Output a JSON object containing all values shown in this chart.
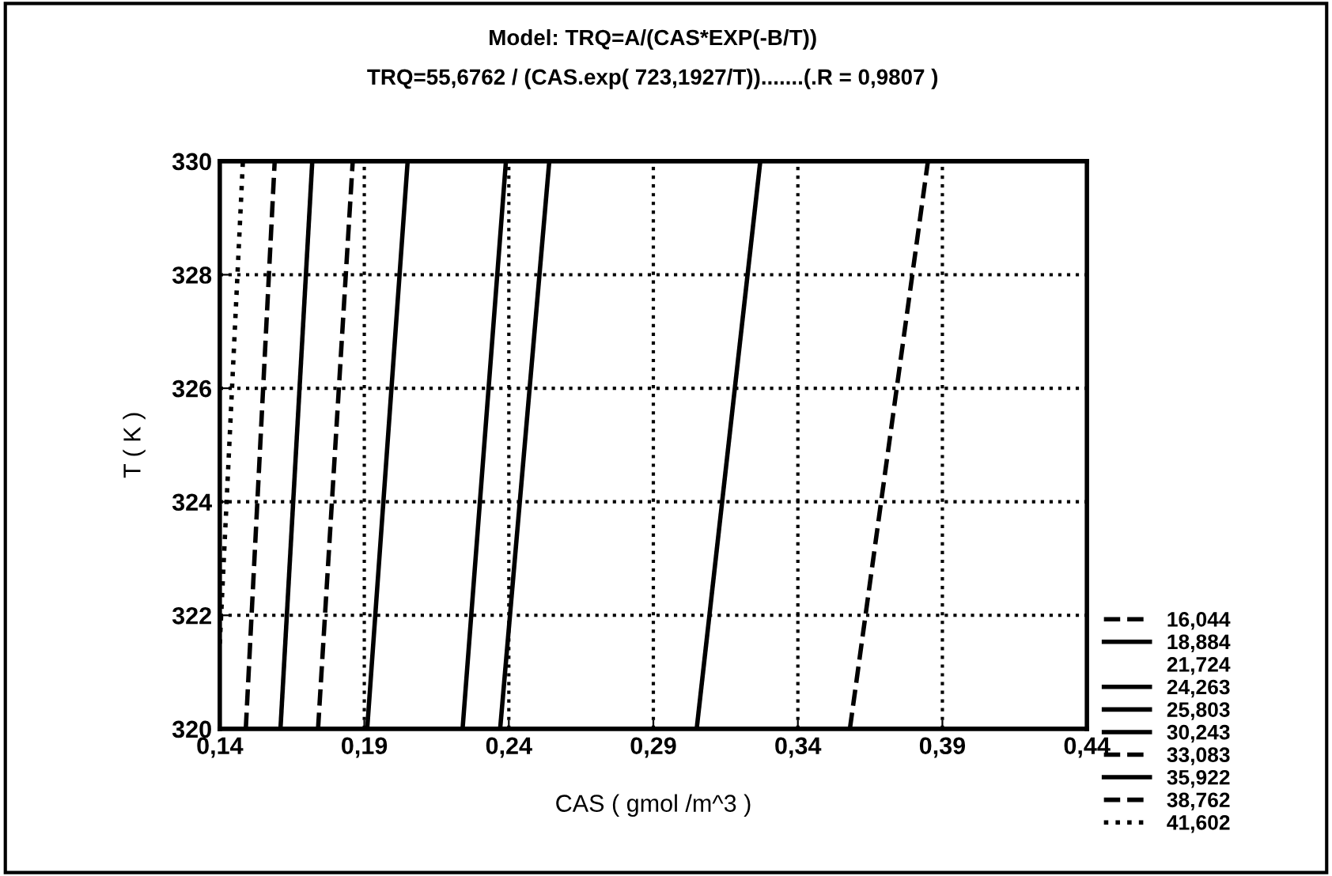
{
  "chart_data": {
    "type": "line",
    "title": "Model: TRQ=A/(CAS*EXP(-B/T))",
    "subtitle": "TRQ=55,6762 / (CAS.exp( 723,1927/T)).......(.R = 0,9807 )",
    "xlabel": "CAS ( gmol /m^3 )",
    "ylabel": "T ( K )",
    "xlim": [
      0.14,
      0.44
    ],
    "xticks": [
      {
        "value": 0.14,
        "label": "0,14"
      },
      {
        "value": 0.19,
        "label": "0,19"
      },
      {
        "value": 0.24,
        "label": "0,24"
      },
      {
        "value": 0.29,
        "label": "0,29"
      },
      {
        "value": 0.34,
        "label": "0,34"
      },
      {
        "value": 0.39,
        "label": "0,39"
      },
      {
        "value": 0.44,
        "label": "0,44"
      }
    ],
    "ylim": [
      320,
      330
    ],
    "yticks": [
      320,
      322,
      324,
      326,
      328,
      330
    ],
    "grid": true,
    "legend": "right",
    "series": [
      {
        "name": "16,044",
        "color": "#000000",
        "line_style": "dashed",
        "x": [
          0.358,
          0.385
        ],
        "values": [
          320,
          330
        ]
      },
      {
        "name": "18,884",
        "color": "#000000",
        "line_style": "solid",
        "x": [
          0.305,
          0.327
        ],
        "values": [
          320,
          330
        ]
      },
      {
        "name": "21,724",
        "color": "#000000",
        "line_style": "none",
        "x": [
          null,
          null
        ],
        "values": [
          null,
          null
        ]
      },
      {
        "name": "24,263",
        "color": "#000000",
        "line_style": "solid",
        "x": [
          0.237,
          0.254
        ],
        "values": [
          320,
          330
        ]
      },
      {
        "name": "25,803",
        "color": "#000000",
        "line_style": "solid",
        "x": [
          0.224,
          0.239
        ],
        "values": [
          320,
          330
        ]
      },
      {
        "name": "30,243",
        "color": "#000000",
        "line_style": "solid",
        "x": [
          0.191,
          0.205
        ],
        "values": [
          320,
          330
        ]
      },
      {
        "name": "33,083",
        "color": "#000000",
        "line_style": "dashed",
        "x": [
          0.174,
          0.186
        ],
        "values": [
          320,
          330
        ]
      },
      {
        "name": "35,922",
        "color": "#000000",
        "line_style": "solid",
        "x": [
          0.161,
          0.172
        ],
        "values": [
          320,
          330
        ]
      },
      {
        "name": "38,762",
        "color": "#000000",
        "line_style": "dashed",
        "x": [
          0.149,
          0.159
        ],
        "values": [
          320,
          330
        ]
      },
      {
        "name": "41,602",
        "color": "#000000",
        "line_style": "dotted",
        "x": [
          0.14,
          0.148
        ],
        "values": [
          321.5,
          330
        ]
      }
    ]
  }
}
